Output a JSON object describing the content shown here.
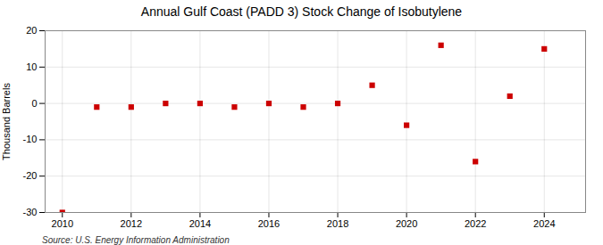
{
  "chart_data": {
    "type": "scatter",
    "title": "Annual Gulf Coast (PADD 3) Stock Change of Isobutylene",
    "ylabel": "Thousand Barrels",
    "annotation": "Source: U.S. Energy Information Administration",
    "x": [
      2010,
      2011,
      2012,
      2013,
      2014,
      2015,
      2016,
      2017,
      2018,
      2019,
      2020,
      2021,
      2022,
      2023,
      2024
    ],
    "values": [
      -30,
      -1,
      -1,
      0,
      0,
      -1,
      0,
      -1,
      0,
      5,
      -6,
      16,
      -16,
      2,
      15
    ],
    "color": "#cc0000",
    "marker": "square",
    "xlim": [
      2009.5,
      2025.2
    ],
    "xticks": [
      2010,
      2012,
      2014,
      2016,
      2018,
      2020,
      2022,
      2024
    ],
    "ylim": [
      -30,
      20
    ],
    "yticks": [
      -30,
      -20,
      -10,
      0,
      10,
      20
    ],
    "grid": true
  }
}
